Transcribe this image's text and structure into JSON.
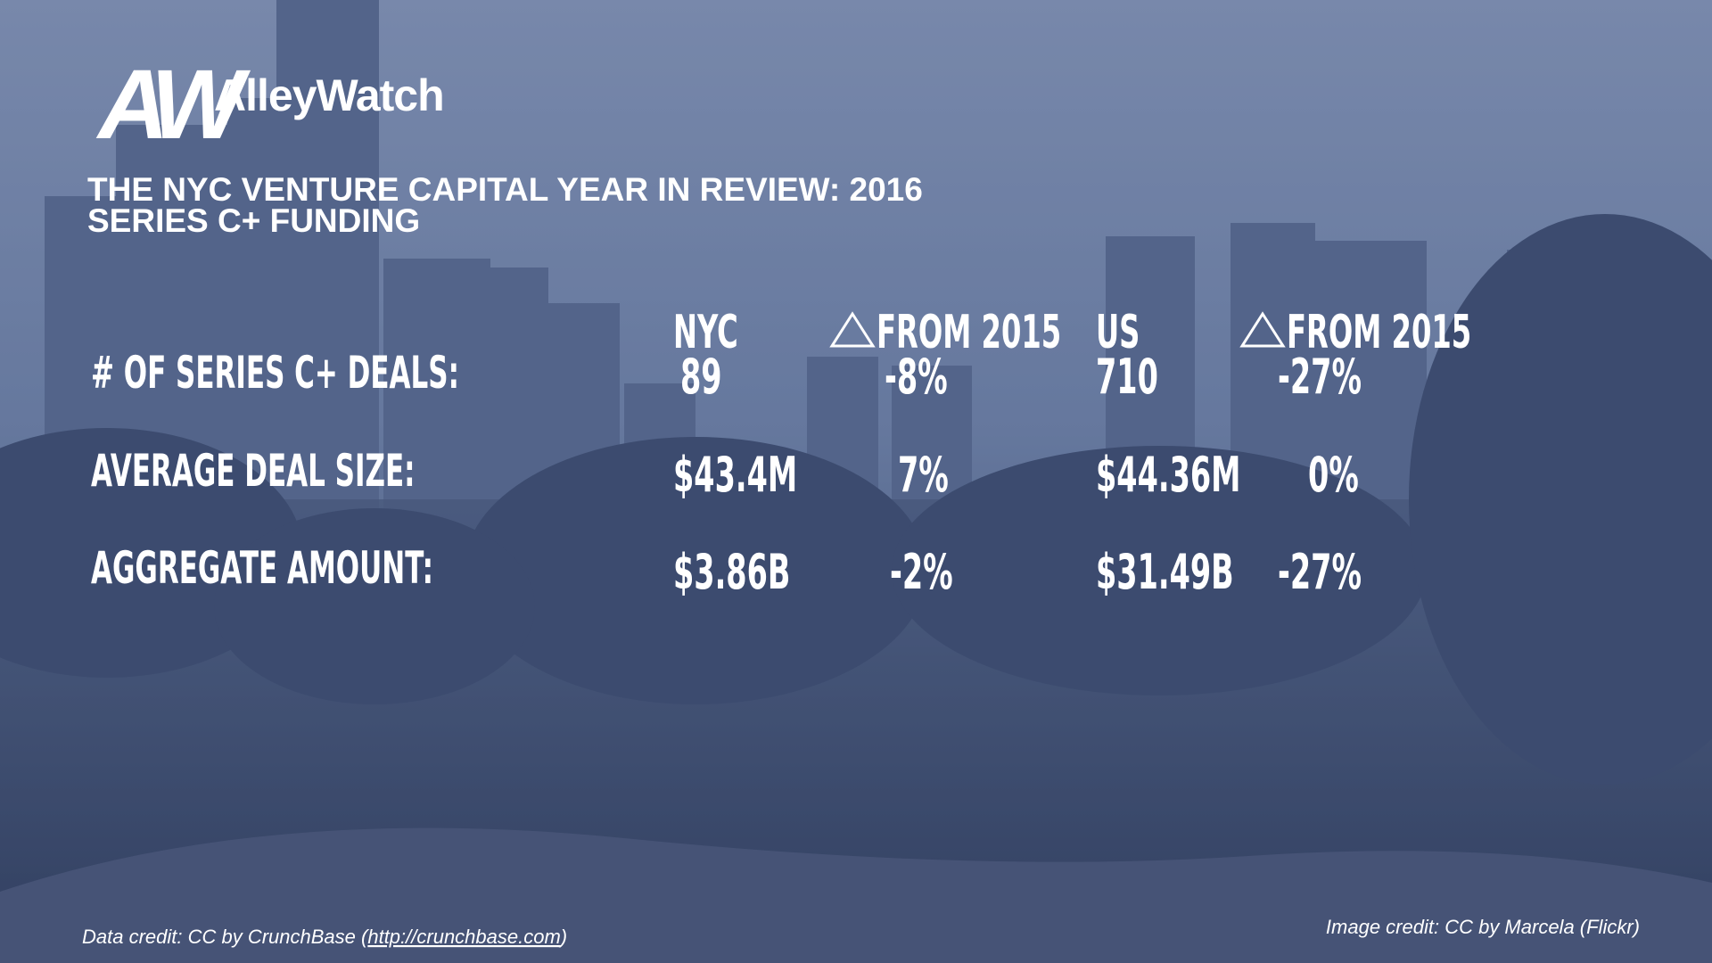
{
  "logo": {
    "mark": "AW",
    "name": "AlleyWatch"
  },
  "header": {
    "title": "THE NYC VENTURE CAPITAL YEAR IN REVIEW: 2016",
    "subtitle": "SERIES C+ FUNDING"
  },
  "table": {
    "columns": [
      "NYC",
      "FROM 2015",
      "US",
      "FROM 2015"
    ],
    "rows": [
      [
        "# OF SERIES C+ DEALS:",
        "89",
        "-8%",
        "710",
        "-27%"
      ],
      [
        "AVERAGE DEAL SIZE:",
        "$43.4M",
        "7%",
        "$44.36M",
        "0%"
      ],
      [
        "AGGREGATE AMOUNT:",
        "$3.86B",
        "-2%",
        "$31.49B",
        "-27%"
      ]
    ]
  },
  "credits": {
    "data_credit": "Data credit: CC by CrunchBase (",
    "data_link": "http://crunchbase.com",
    "data_close": ")",
    "image_credit": "Image credit: CC by Marcela (Flickr)"
  }
}
